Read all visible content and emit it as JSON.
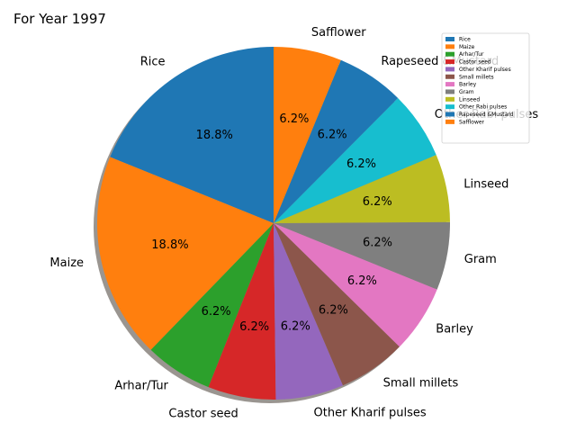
{
  "chart_data": {
    "type": "pie",
    "title": "For Year 1997",
    "categories": [
      "Rice",
      "Maize",
      "Arhar/Tur",
      "Castor seed",
      "Other Kharif pulses",
      "Small millets",
      "Barley",
      "Gram",
      "Linseed",
      "Other  Rabi pulses",
      "Rapeseed &Mustard",
      "Safflower"
    ],
    "values": [
      18.8,
      18.8,
      6.2,
      6.2,
      6.2,
      6.2,
      6.2,
      6.2,
      6.2,
      6.2,
      6.2,
      6.2
    ],
    "percent_labels": [
      "18.8%",
      "18.8%",
      "6.2%",
      "6.2%",
      "6.2%",
      "6.2%",
      "6.2%",
      "6.2%",
      "6.2%",
      "6.2%",
      "6.2%",
      "6.2%"
    ],
    "colors": [
      "#1f77b4",
      "#ff7f0e",
      "#2ca02c",
      "#d62728",
      "#9467bd",
      "#8c564b",
      "#e377c2",
      "#7f7f7f",
      "#bcbd22",
      "#17becf",
      "#1f77b4",
      "#ff7f0e"
    ],
    "legend_position": "top-right",
    "shadow": true
  }
}
